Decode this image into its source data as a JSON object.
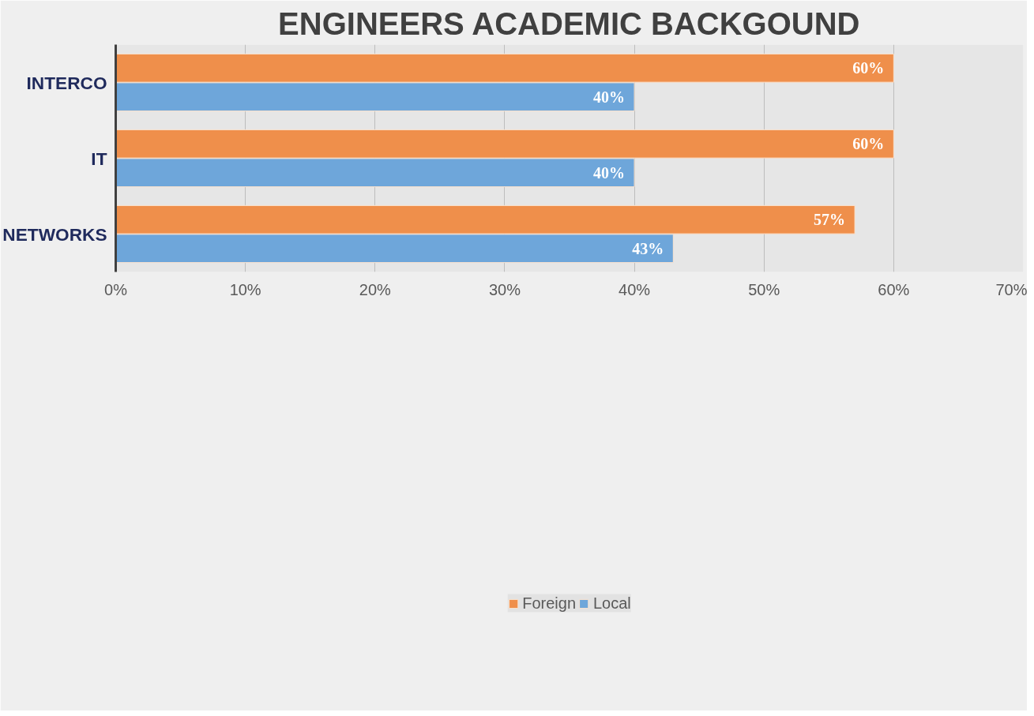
{
  "chart_data": {
    "type": "bar",
    "orientation": "horizontal",
    "title": "ENGINEERS ACADEMIC BACKGOUND",
    "categories": [
      "INTERCO",
      "IT",
      "NETWORKS"
    ],
    "series": [
      {
        "name": "Foreign",
        "color": "#ef8f4b",
        "values": [
          60,
          60,
          57
        ],
        "value_labels": [
          "60%",
          "60%",
          "57%"
        ]
      },
      {
        "name": "Local",
        "color": "#6ea6da",
        "values": [
          40,
          40,
          43
        ],
        "value_labels": [
          "40%",
          "40%",
          "43%"
        ]
      }
    ],
    "xlim": [
      0,
      70
    ],
    "xticks": [
      {
        "value": 0,
        "label": "0%"
      },
      {
        "value": 10,
        "label": "10%"
      },
      {
        "value": 20,
        "label": "20%"
      },
      {
        "value": 30,
        "label": "30%"
      },
      {
        "value": 40,
        "label": "40%"
      },
      {
        "value": 50,
        "label": "50%"
      },
      {
        "value": 60,
        "label": "60%"
      },
      {
        "value": 70,
        "label": "70%"
      }
    ],
    "grid": "x",
    "legend": "bottom"
  }
}
